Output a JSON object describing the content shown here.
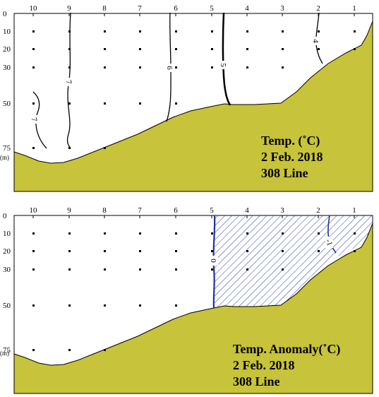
{
  "colors": {
    "seabed": "#c7c33a",
    "frame": "#000000",
    "anomaly_contour": "#1f2fa8",
    "hatch": "#2a3bb0"
  },
  "station_labels": [
    "10",
    "9",
    "8",
    "7",
    "6",
    "5",
    "4",
    "3",
    "2",
    "1"
  ],
  "depth_labels": [
    "0",
    "10",
    "20",
    "30",
    "50",
    "75"
  ],
  "depth_unit": "(m)",
  "panels": [
    {
      "caption_lines": [
        "Temp. (˚C)",
        "2 Feb. 2018",
        "308 Line"
      ],
      "contours": [
        {
          "level": 7,
          "label": "7"
        },
        {
          "level": 7,
          "label": "7"
        },
        {
          "level": 6,
          "label": "6"
        },
        {
          "level": 5,
          "label": "5"
        },
        {
          "level": 4,
          "label": "4"
        }
      ]
    },
    {
      "caption_lines": [
        "Temp. Anomaly(˚C)",
        "2 Feb. 2018",
        "308 Line"
      ],
      "contours": [
        {
          "level": 0,
          "label": "0"
        },
        {
          "level": -1,
          "label": "-1"
        }
      ],
      "hatched_region": "negative anomaly"
    }
  ]
}
